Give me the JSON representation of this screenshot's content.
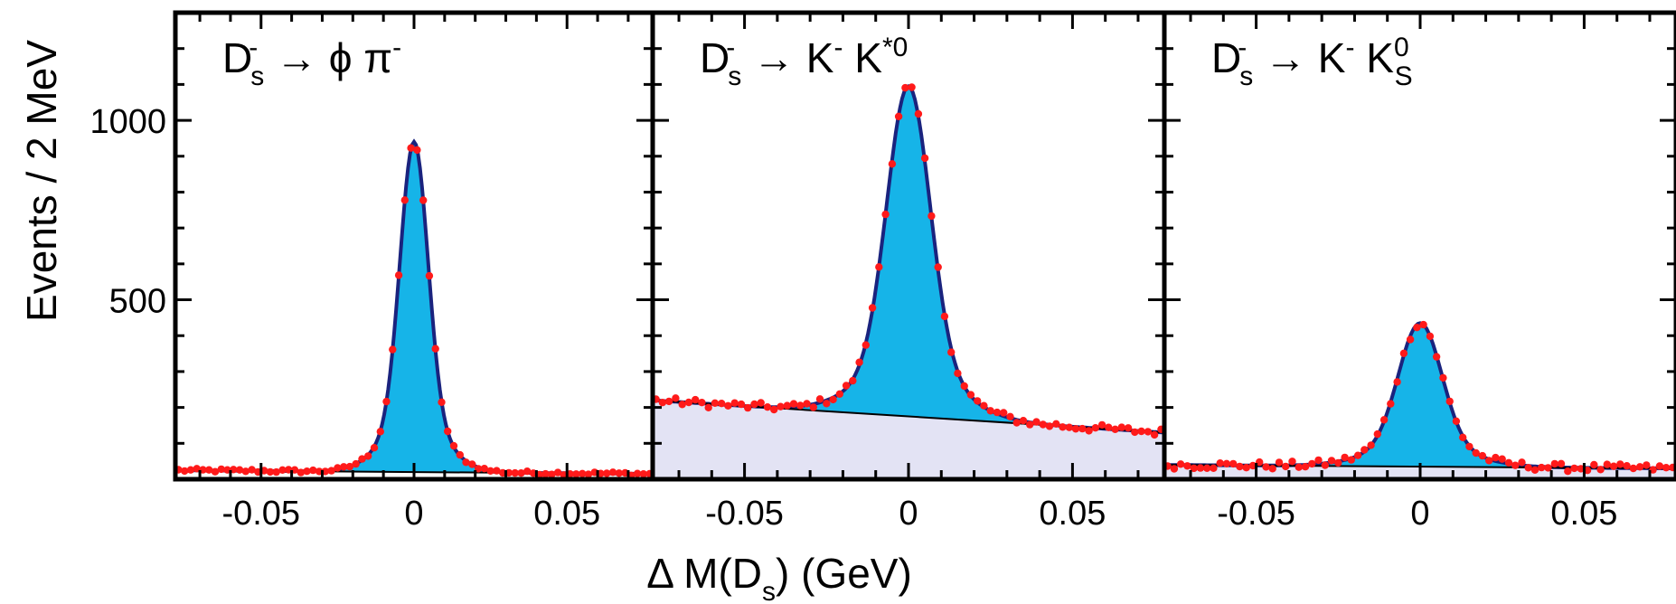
{
  "chart_data": {
    "type": "line",
    "ylabel": "Events / 2 MeV",
    "xlabel": {
      "main": "Δ M(D",
      "sub": "s",
      "tail": ")  (GeV)"
    },
    "xlim": [
      -0.078,
      0.078
    ],
    "ylim": [
      0,
      1300
    ],
    "xticks": [
      -0.05,
      0,
      0.05
    ],
    "xtick_labels": [
      "-0.05",
      "0",
      "0.05"
    ],
    "yticks": [
      500,
      1000
    ],
    "ytick_labels": [
      "500",
      "1000"
    ],
    "colors": {
      "signal_fill": "#16b4e8",
      "fit_curve": "#1a237e",
      "data_points": "#ff1a1a",
      "background_fill": "#e3e3f4",
      "background_line": "#000000"
    },
    "panels": [
      {
        "title": {
          "base": "D",
          "sup": "-",
          "sub": "s",
          "arrow": "→",
          "rest": "ϕ π",
          "rest_sup": "-",
          "rest_sub": ""
        },
        "background": {
          "left": 25,
          "right": 15
        },
        "signal": {
          "peak": 920,
          "sigma": 0.0045
        },
        "shade_background": false
      },
      {
        "title": {
          "base": "D",
          "sup": "-",
          "sub": "s",
          "arrow": "→",
          "rest": "K",
          "rest_sup": "-",
          "rest2": "K",
          "rest2_sup": "*0",
          "rest2_sub": ""
        },
        "background": {
          "left": 220,
          "right": 130
        },
        "signal": {
          "peak": 920,
          "sigma": 0.0065
        },
        "shade_background": true
      },
      {
        "title": {
          "base": "D",
          "sup": "-",
          "sub": "s",
          "arrow": "→",
          "rest": "K",
          "rest_sup": "-",
          "rest2": "K",
          "rest2_sup": "0",
          "rest2_sub": "S"
        },
        "background": {
          "left": 40,
          "right": 30
        },
        "signal": {
          "peak": 400,
          "sigma": 0.0065
        },
        "shade_background": true
      }
    ]
  }
}
